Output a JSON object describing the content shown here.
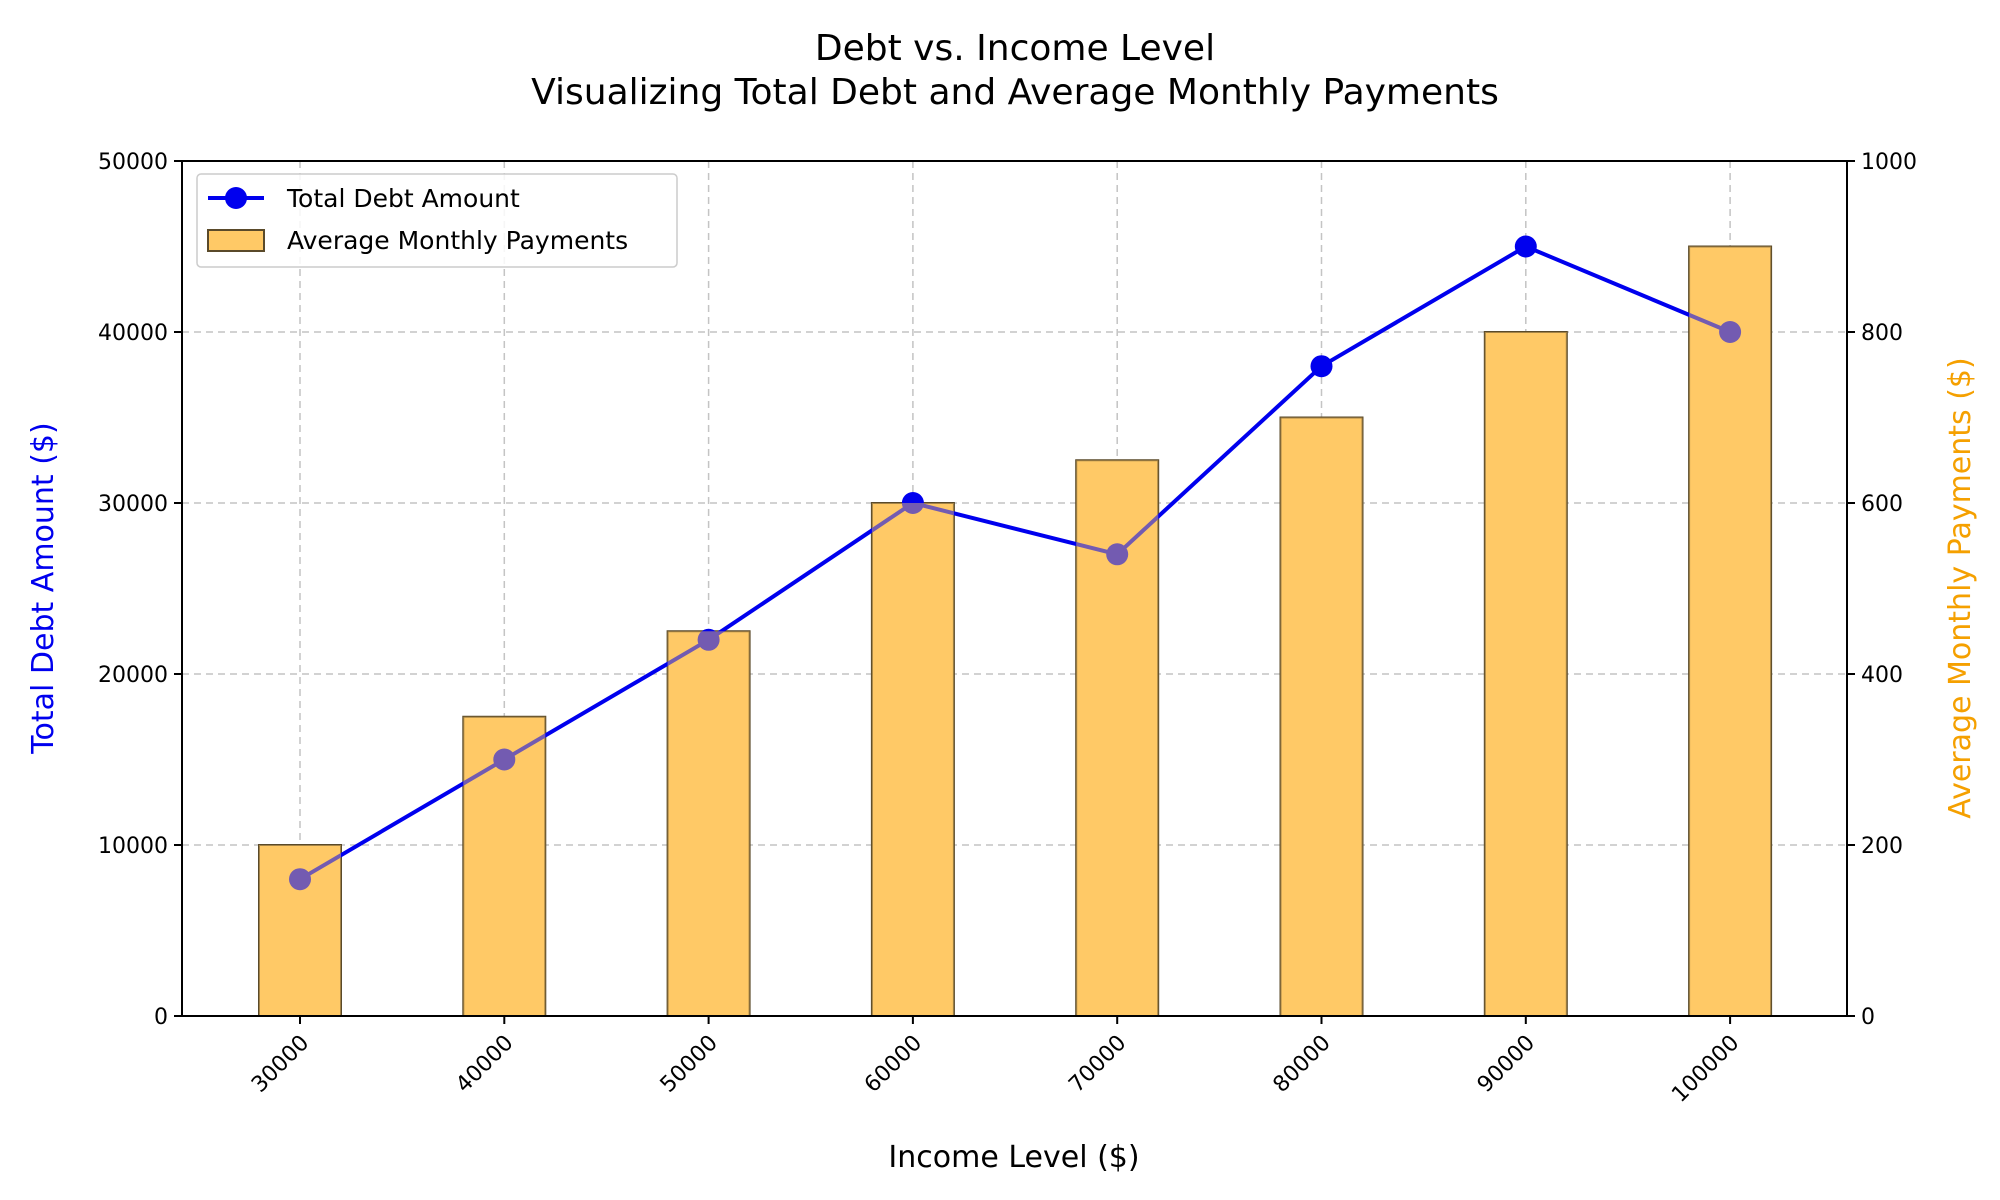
{
  "chart_data": {
    "type": "bar",
    "title": "Debt vs. Income Level",
    "subtitle": "Visualizing Total Debt and Average Monthly Payments",
    "xlabel": "Income Level ($)",
    "ylabel_left": "Total Debt Amount ($)",
    "ylabel_right": "Average Monthly Payments ($)",
    "categories": [
      "30000",
      "40000",
      "50000",
      "60000",
      "70000",
      "80000",
      "90000",
      "100000"
    ],
    "y_left_ticks": [
      "0",
      "10000",
      "20000",
      "30000",
      "40000",
      "50000"
    ],
    "y_right_ticks": [
      "0",
      "200",
      "400",
      "600",
      "800",
      "1000"
    ],
    "ylim_left": [
      0,
      50000
    ],
    "ylim_right": [
      0,
      1000
    ],
    "grid": true,
    "legend_position": "top-left",
    "series": [
      {
        "name": "Total Debt Amount",
        "type": "line",
        "axis": "left",
        "color": "#0000ee",
        "values": [
          8000,
          15000,
          22000,
          30000,
          27000,
          38000,
          45000,
          40000
        ]
      },
      {
        "name": "Average Monthly Payments",
        "type": "bar",
        "axis": "right",
        "color": "#ffc966",
        "edge_color": "#5a4a2a",
        "values": [
          200,
          350,
          450,
          600,
          650,
          700,
          800,
          900
        ]
      }
    ],
    "colors": {
      "left_axis_label": "#0000ee",
      "right_axis_label": "#f5a000",
      "grid": "#c4c4c4",
      "overlap_marker": "#9a5f5f"
    }
  }
}
